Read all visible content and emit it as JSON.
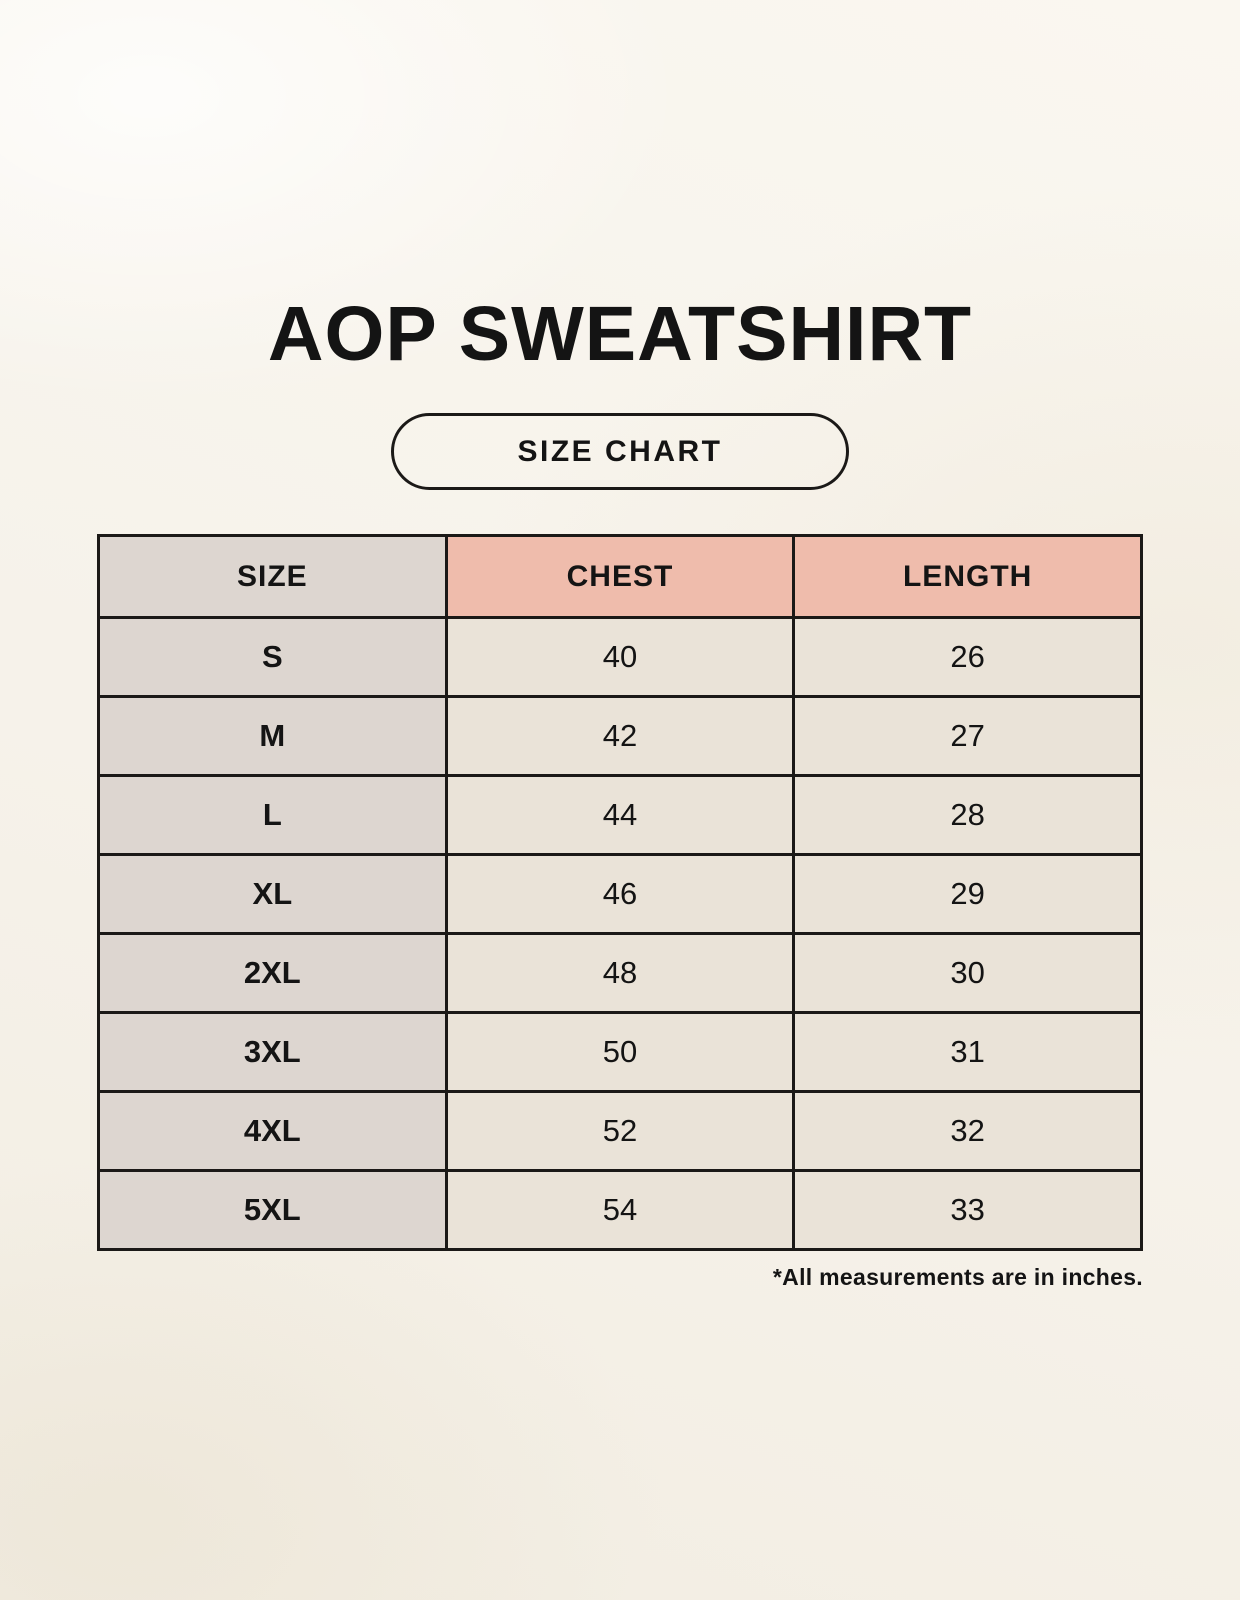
{
  "chart_data": {
    "type": "table",
    "title": "AOP SWEATSHIRT",
    "subtitle": "SIZE CHART",
    "columns": [
      "SIZE",
      "CHEST",
      "LENGTH"
    ],
    "rows": [
      [
        "S",
        40,
        26
      ],
      [
        "M",
        42,
        27
      ],
      [
        "L",
        44,
        28
      ],
      [
        "XL",
        46,
        29
      ],
      [
        "2XL",
        48,
        30
      ],
      [
        "3XL",
        50,
        31
      ],
      [
        "4XL",
        52,
        32
      ],
      [
        "5XL",
        54,
        33
      ]
    ],
    "note": "*All measurements are in inches.",
    "units": "inches",
    "layout": {
      "legend": "none",
      "grid": "full-borders"
    }
  },
  "colors": {
    "background": "#f6f2ea",
    "border": "#1b1917",
    "text": "#141414",
    "size_col_bg": "#ddd6d0",
    "measure_header_bg": "#efbcac",
    "data_cell_bg": "#eae3d8"
  }
}
